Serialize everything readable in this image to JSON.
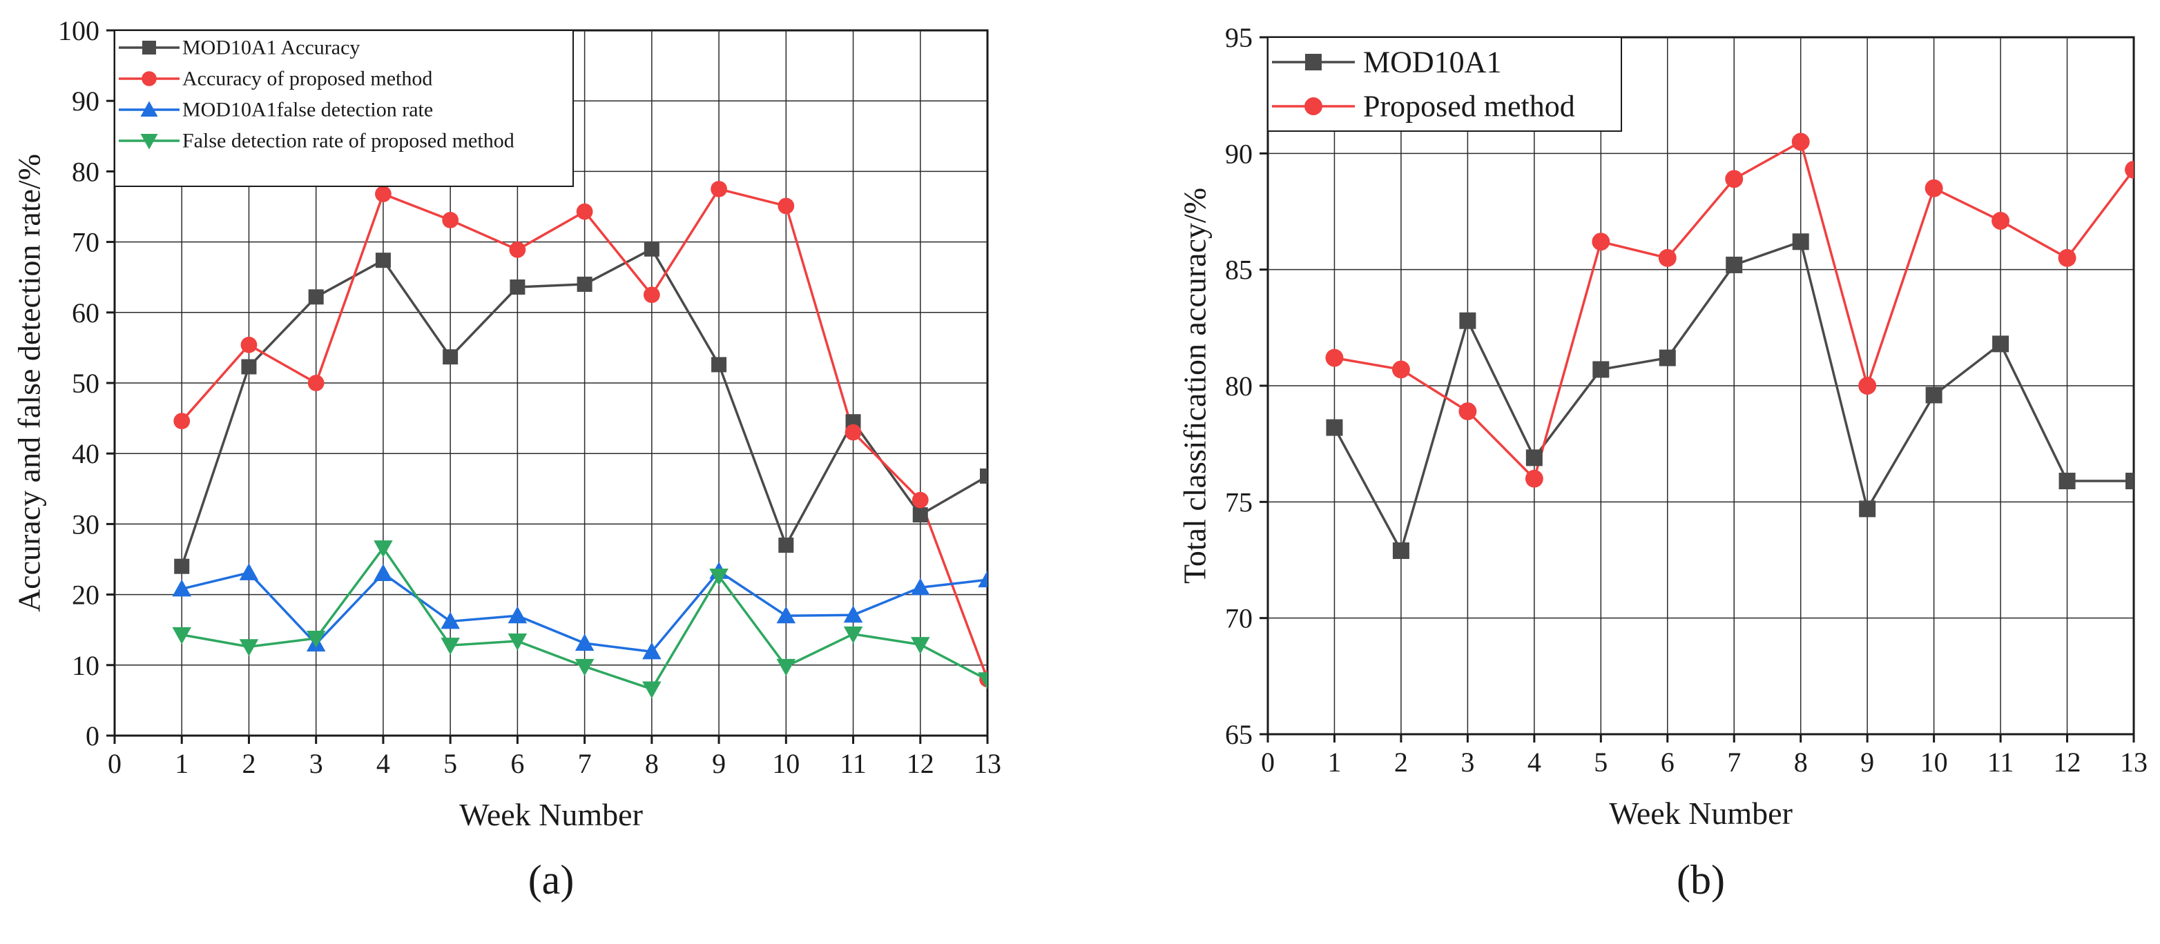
{
  "chart_data": [
    {
      "type": "line",
      "panel_label": "(a)",
      "title": "",
      "xlabel": "Week Number",
      "ylabel": "Accuracy and false detection rate/%",
      "xlim": [
        0,
        13
      ],
      "ylim": [
        0,
        100
      ],
      "x_ticks": [
        0,
        1,
        2,
        3,
        4,
        5,
        6,
        7,
        8,
        9,
        10,
        11,
        12,
        13
      ],
      "y_ticks": [
        0,
        10,
        20,
        30,
        40,
        50,
        60,
        70,
        80,
        90,
        100
      ],
      "grid": true,
      "legend_position": "top-left",
      "x": [
        1,
        2,
        3,
        4,
        5,
        6,
        7,
        8,
        9,
        10,
        11,
        12,
        13
      ],
      "series": [
        {
          "name": "MOD10A1 Accuracy",
          "color": "#4a4a4a",
          "marker": "square",
          "values": [
            24,
            52.3,
            62.2,
            67.4,
            53.7,
            63.6,
            64,
            69,
            52.6,
            27,
            44.5,
            31.3,
            36.8
          ]
        },
        {
          "name": "Accuracy of proposed method",
          "color": "#f04040",
          "marker": "circle",
          "values": [
            44.6,
            55.4,
            50,
            76.8,
            73.1,
            68.9,
            74.3,
            62.5,
            77.5,
            75.1,
            43,
            33.4,
            8
          ]
        },
        {
          "name": "MOD10A1false detection rate",
          "color": "#1f6fe0",
          "marker": "triangle-up",
          "values": [
            20.8,
            23.1,
            13,
            23,
            16.2,
            17,
            13.1,
            11.9,
            23.3,
            17,
            17.1,
            21,
            22.1
          ]
        },
        {
          "name": "False detection rate of proposed method",
          "color": "#2ea860",
          "marker": "triangle-down",
          "values": [
            14.3,
            12.6,
            13.8,
            26.6,
            12.8,
            13.4,
            9.8,
            6.6,
            22.6,
            9.8,
            14.4,
            12.9,
            7.9
          ]
        }
      ]
    },
    {
      "type": "line",
      "panel_label": "(b)",
      "title": "",
      "xlabel": "Week Number",
      "ylabel": "Total classification accuracy/%",
      "xlim": [
        0,
        13
      ],
      "ylim": [
        65,
        95
      ],
      "x_ticks": [
        0,
        1,
        2,
        3,
        4,
        5,
        6,
        7,
        8,
        9,
        10,
        11,
        12,
        13
      ],
      "y_ticks": [
        65,
        70,
        75,
        80,
        85,
        90,
        95
      ],
      "grid": true,
      "legend_position": "top-left",
      "x": [
        1,
        2,
        3,
        4,
        5,
        6,
        7,
        8,
        9,
        10,
        11,
        12,
        13
      ],
      "series": [
        {
          "name": "MOD10A1",
          "color": "#4a4a4a",
          "marker": "square",
          "values": [
            78.2,
            72.9,
            82.8,
            76.9,
            80.7,
            81.2,
            85.2,
            86.2,
            74.7,
            79.6,
            81.8,
            75.9,
            75.9
          ]
        },
        {
          "name": "Proposed method",
          "color": "#f04040",
          "marker": "circle",
          "values": [
            81.2,
            80.7,
            78.9,
            76,
            86.2,
            85.5,
            88.9,
            90.5,
            80,
            88.5,
            87.1,
            85.5,
            89.3
          ]
        }
      ]
    }
  ]
}
